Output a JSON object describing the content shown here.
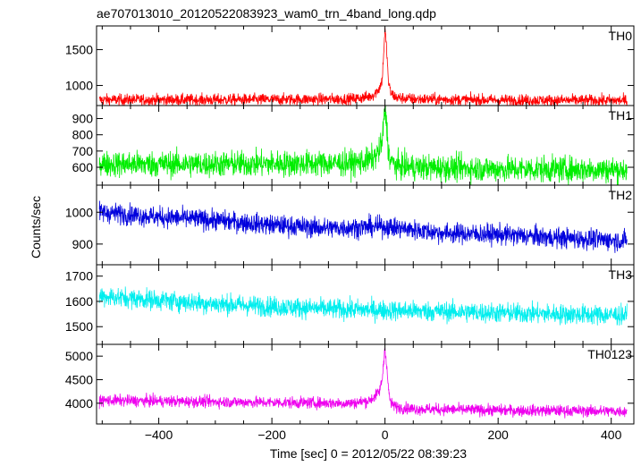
{
  "title": "ae707013010_20120522083923_wam0_trn_4band_long.qdp",
  "chart_data": {
    "type": "line",
    "title": "ae707013010_20120522083923_wam0_trn_4band_long.qdp",
    "xlabel": "Time [sec] 0 = 2012/05/22 08:39:23",
    "ylabel": "Counts/sec",
    "xlim": [
      -510,
      440
    ],
    "x_ticks": [
      -400,
      -200,
      0,
      200,
      400
    ],
    "x_tick_labels": [
      "−400",
      "−200",
      "0",
      "200",
      "400"
    ],
    "series": [
      {
        "name": "TH0",
        "color": "#ff0000",
        "ylim": [
          720,
          1830
        ],
        "y_ticks": [
          1000,
          1500
        ],
        "y_tick_labels": [
          "1000",
          "1500"
        ],
        "x": [
          -500,
          -300,
          -60,
          -30,
          -20,
          -10,
          -5,
          0,
          3,
          6,
          10,
          20,
          50,
          200,
          430
        ],
        "values": [
          800,
          800,
          810,
          840,
          870,
          960,
          1080,
          1780,
          1500,
          1050,
          900,
          830,
          810,
          795,
          790
        ]
      },
      {
        "name": "TH1",
        "color": "#00ee00",
        "ylim": [
          490,
          980
        ],
        "y_ticks": [
          600,
          700,
          800,
          900
        ],
        "y_tick_labels": [
          "600",
          "700",
          "800",
          "900"
        ],
        "x": [
          -500,
          -300,
          -60,
          -30,
          -20,
          -10,
          -5,
          0,
          3,
          6,
          10,
          20,
          50,
          200,
          430
        ],
        "values": [
          620,
          620,
          625,
          640,
          660,
          700,
          760,
          960,
          860,
          700,
          640,
          610,
          600,
          590,
          585
        ]
      },
      {
        "name": "TH2",
        "color": "#0000dd",
        "ylim": [
          835,
          1085
        ],
        "y_ticks": [
          900,
          1000
        ],
        "y_tick_labels": [
          "900",
          "1000"
        ],
        "x": [
          -500,
          -400,
          -300,
          -200,
          -100,
          0,
          100,
          200,
          300,
          430
        ],
        "values": [
          1000,
          985,
          975,
          960,
          950,
          955,
          935,
          930,
          920,
          910
        ]
      },
      {
        "name": "TH3",
        "color": "#00eeee",
        "ylim": [
          1430,
          1745
        ],
        "y_ticks": [
          1500,
          1600,
          1700
        ],
        "y_tick_labels": [
          "1500",
          "1600",
          "1700"
        ],
        "x": [
          -500,
          -400,
          -300,
          -200,
          -100,
          0,
          100,
          200,
          300,
          430
        ],
        "values": [
          1620,
          1605,
          1590,
          1580,
          1570,
          1565,
          1560,
          1555,
          1550,
          1545
        ]
      },
      {
        "name": "TH0123",
        "color": "#ee00ee",
        "ylim": [
          3560,
          5250
        ],
        "y_ticks": [
          4000,
          4500,
          5000
        ],
        "y_tick_labels": [
          "4000",
          "4500",
          "5000"
        ],
        "x": [
          -500,
          -300,
          -60,
          -30,
          -20,
          -10,
          -5,
          0,
          3,
          6,
          10,
          20,
          50,
          200,
          430
        ],
        "values": [
          4060,
          4030,
          4000,
          4050,
          4120,
          4250,
          4500,
          5200,
          4800,
          4300,
          4000,
          3920,
          3880,
          3850,
          3830
        ]
      }
    ]
  }
}
